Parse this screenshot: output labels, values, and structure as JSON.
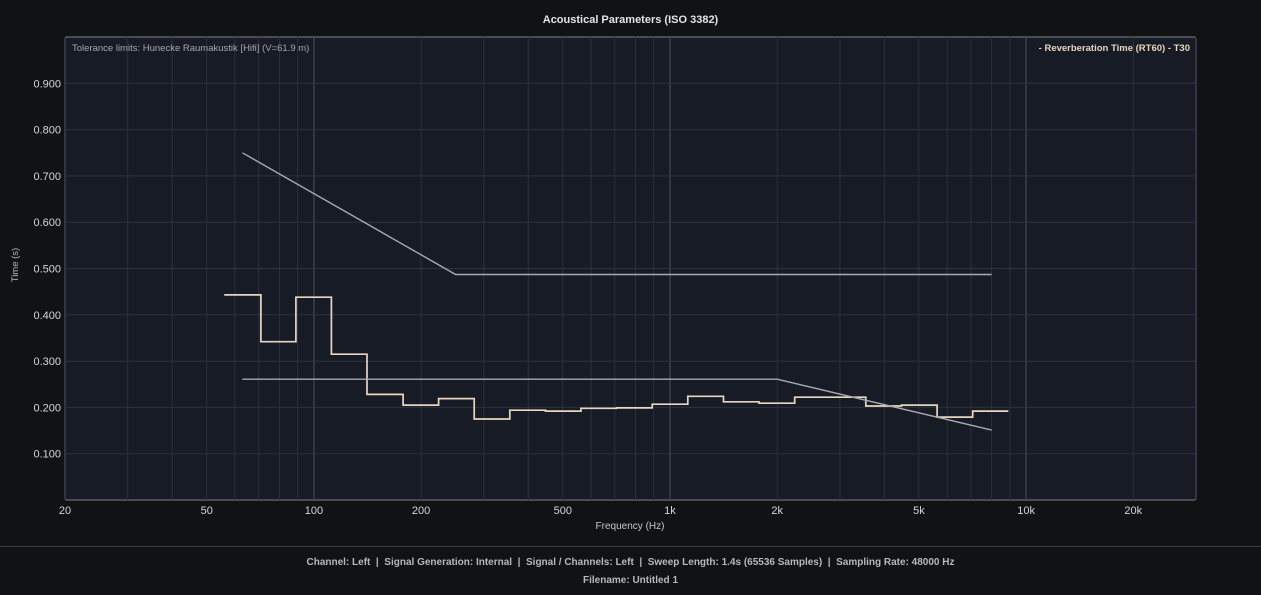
{
  "chart_data": {
    "type": "line",
    "title": "Acoustical Parameters (ISO 3382)",
    "xlabel": "Frequency (Hz)",
    "ylabel": "Time (s)",
    "x_scale": "log",
    "xlim": [
      20,
      30000
    ],
    "ylim": [
      0,
      1.0
    ],
    "grid": true,
    "legend_position": "top-right",
    "x_tick_labels": [
      {
        "value": 20,
        "label": "20"
      },
      {
        "value": 50,
        "label": "50"
      },
      {
        "value": 100,
        "label": "100"
      },
      {
        "value": 200,
        "label": "200"
      },
      {
        "value": 500,
        "label": "500"
      },
      {
        "value": 1000,
        "label": "1k"
      },
      {
        "value": 2000,
        "label": "2k"
      },
      {
        "value": 5000,
        "label": "5k"
      },
      {
        "value": 10000,
        "label": "10k"
      },
      {
        "value": 20000,
        "label": "20k"
      }
    ],
    "y_tick_labels": [
      {
        "value": 0.1,
        "label": "0.100"
      },
      {
        "value": 0.2,
        "label": "0.200"
      },
      {
        "value": 0.3,
        "label": "0.300"
      },
      {
        "value": 0.4,
        "label": "0.400"
      },
      {
        "value": 0.5,
        "label": "0.500"
      },
      {
        "value": 0.6,
        "label": "0.600"
      },
      {
        "value": 0.7,
        "label": "0.700"
      },
      {
        "value": 0.8,
        "label": "0.800"
      },
      {
        "value": 0.9,
        "label": "0.900"
      }
    ],
    "annotation": "Tolerance limits: Hunecke Raumakustik [Hifi] (V=61.9 m)",
    "series": [
      {
        "name": "Reverberation Time (RT60) - T30",
        "legend_label": "- Reverberation Time (RT60) - T30",
        "style": "step",
        "color": "#e8d6bf",
        "steps": [
          {
            "x0": 56,
            "x1": 71,
            "y": 0.443
          },
          {
            "x0": 71,
            "x1": 89,
            "y": 0.342
          },
          {
            "x0": 89,
            "x1": 112,
            "y": 0.438
          },
          {
            "x0": 112,
            "x1": 141,
            "y": 0.315
          },
          {
            "x0": 141,
            "x1": 178,
            "y": 0.228
          },
          {
            "x0": 178,
            "x1": 224,
            "y": 0.205
          },
          {
            "x0": 224,
            "x1": 282,
            "y": 0.219
          },
          {
            "x0": 282,
            "x1": 355,
            "y": 0.175
          },
          {
            "x0": 355,
            "x1": 447,
            "y": 0.194
          },
          {
            "x0": 447,
            "x1": 562,
            "y": 0.192
          },
          {
            "x0": 562,
            "x1": 708,
            "y": 0.198
          },
          {
            "x0": 708,
            "x1": 891,
            "y": 0.199
          },
          {
            "x0": 891,
            "x1": 1122,
            "y": 0.207
          },
          {
            "x0": 1122,
            "x1": 1413,
            "y": 0.224
          },
          {
            "x0": 1413,
            "x1": 1778,
            "y": 0.212
          },
          {
            "x0": 1778,
            "x1": 2239,
            "y": 0.209
          },
          {
            "x0": 2239,
            "x1": 2818,
            "y": 0.222
          },
          {
            "x0": 2818,
            "x1": 3548,
            "y": 0.222
          },
          {
            "x0": 3548,
            "x1": 4467,
            "y": 0.203
          },
          {
            "x0": 4467,
            "x1": 5623,
            "y": 0.205
          },
          {
            "x0": 5623,
            "x1": 7079,
            "y": 0.179
          },
          {
            "x0": 7079,
            "x1": 8913,
            "y": 0.192
          }
        ]
      },
      {
        "name": "upper-tolerance",
        "style": "line",
        "color": "#a9aab0",
        "points": [
          [
            63,
            0.75
          ],
          [
            250,
            0.487
          ],
          [
            8000,
            0.487
          ]
        ]
      },
      {
        "name": "lower-tolerance",
        "style": "line",
        "color": "#a9aab0",
        "points": [
          [
            63,
            0.261
          ],
          [
            2000,
            0.261
          ],
          [
            8000,
            0.151
          ]
        ]
      }
    ]
  },
  "footer": {
    "info": "Channel: Left  |  Signal Generation: Internal  |  Signal / Channels: Left  |  Sweep Length: 1.4s (65536 Samples)  |  Sampling Rate: 48000 Hz",
    "filename": "Filename: Untitled 1"
  }
}
